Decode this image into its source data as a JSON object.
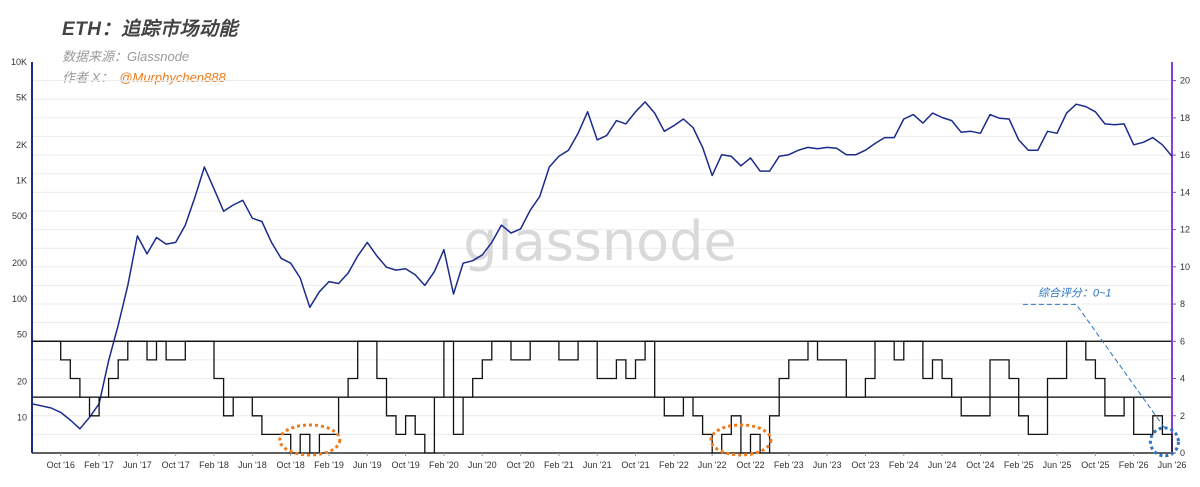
{
  "header": {
    "title": "ETH：追踪市场动能",
    "source": "数据来源：Glassnode",
    "author_prefix": "作者 X：",
    "author_handle": "@Murphychen888"
  },
  "watermark": "glassnode",
  "colors": {
    "price": "#1a2b8c",
    "score": "#111111",
    "left_axis": "#1a2b8c",
    "right_axis": "#8b3fd1",
    "highlight_orange": "#f07a1a",
    "highlight_blue": "#2a73c2",
    "grid": "#ececec"
  },
  "chart_data": {
    "type": "line",
    "title": "ETH：追踪市场动能",
    "xaxis": {
      "range": [
        "2016-07",
        "2026-06"
      ],
      "ticks": [
        "Oct '16",
        "Feb '17",
        "Jun '17",
        "Oct '17",
        "Feb '18",
        "Jun '18",
        "Oct '18",
        "Feb '19",
        "Jun '19",
        "Oct '19",
        "Feb '20",
        "Jun '20",
        "Oct '20",
        "Feb '21",
        "Jun '21",
        "Oct '21",
        "Feb '22",
        "Jun '22",
        "Oct '22",
        "Feb '23",
        "Jun '23",
        "Oct '23",
        "Feb '24",
        "Jun '24",
        "Oct '24",
        "Feb '25",
        "Jun '25",
        "Oct '25",
        "Feb '26",
        "Jun '26"
      ]
    },
    "yaxis_left": {
      "scale": "log",
      "range": [
        5,
        10000
      ],
      "ticks": [
        "10K",
        "5K",
        "2K",
        "1K",
        "500",
        "200",
        "100",
        "50",
        "20",
        "10"
      ]
    },
    "yaxis_right": {
      "scale": "linear",
      "range": [
        0,
        21
      ],
      "ticks": [
        "20",
        "18",
        "16",
        "14",
        "12",
        "10",
        "8",
        "6",
        "4",
        "2",
        "0"
      ]
    },
    "reference_lines_right": [
      6,
      3,
      0
    ],
    "series": [
      {
        "axis": "left",
        "points": [
          [
            "2016-07",
            13
          ],
          [
            "2016-09",
            12
          ],
          [
            "2016-10",
            11
          ],
          [
            "2016-11",
            9.5
          ],
          [
            "2016-12",
            8
          ],
          [
            "2017-01",
            10
          ],
          [
            "2017-02",
            13
          ],
          [
            "2017-03",
            30
          ],
          [
            "2017-04",
            60
          ],
          [
            "2017-05",
            130
          ],
          [
            "2017-06",
            340
          ],
          [
            "2017-07",
            240
          ],
          [
            "2017-08",
            330
          ],
          [
            "2017-09",
            290
          ],
          [
            "2017-10",
            300
          ],
          [
            "2017-11",
            420
          ],
          [
            "2017-12",
            720
          ],
          [
            "2018-01",
            1300
          ],
          [
            "2018-02",
            850
          ],
          [
            "2018-03",
            550
          ],
          [
            "2018-04",
            620
          ],
          [
            "2018-05",
            680
          ],
          [
            "2018-06",
            480
          ],
          [
            "2018-07",
            450
          ],
          [
            "2018-08",
            300
          ],
          [
            "2018-09",
            220
          ],
          [
            "2018-10",
            200
          ],
          [
            "2018-11",
            150
          ],
          [
            "2018-12",
            85
          ],
          [
            "2019-01",
            115
          ],
          [
            "2019-02",
            140
          ],
          [
            "2019-03",
            135
          ],
          [
            "2019-04",
            165
          ],
          [
            "2019-05",
            230
          ],
          [
            "2019-06",
            300
          ],
          [
            "2019-07",
            230
          ],
          [
            "2019-08",
            185
          ],
          [
            "2019-09",
            175
          ],
          [
            "2019-10",
            180
          ],
          [
            "2019-11",
            160
          ],
          [
            "2019-12",
            130
          ],
          [
            "2020-01",
            170
          ],
          [
            "2020-02",
            260
          ],
          [
            "2020-03",
            110
          ],
          [
            "2020-04",
            200
          ],
          [
            "2020-05",
            210
          ],
          [
            "2020-06",
            235
          ],
          [
            "2020-07",
            300
          ],
          [
            "2020-08",
            420
          ],
          [
            "2020-09",
            360
          ],
          [
            "2020-10",
            390
          ],
          [
            "2020-11",
            560
          ],
          [
            "2020-12",
            730
          ],
          [
            "2021-01",
            1300
          ],
          [
            "2021-02",
            1600
          ],
          [
            "2021-03",
            1800
          ],
          [
            "2021-04",
            2500
          ],
          [
            "2021-05",
            3800
          ],
          [
            "2021-06",
            2200
          ],
          [
            "2021-07",
            2400
          ],
          [
            "2021-08",
            3200
          ],
          [
            "2021-09",
            3000
          ],
          [
            "2021-10",
            3800
          ],
          [
            "2021-11",
            4600
          ],
          [
            "2021-12",
            3700
          ],
          [
            "2022-01",
            2600
          ],
          [
            "2022-02",
            2900
          ],
          [
            "2022-03",
            3300
          ],
          [
            "2022-04",
            2800
          ],
          [
            "2022-05",
            1900
          ],
          [
            "2022-06",
            1100
          ],
          [
            "2022-07",
            1650
          ],
          [
            "2022-08",
            1600
          ],
          [
            "2022-09",
            1330
          ],
          [
            "2022-10",
            1550
          ],
          [
            "2022-11",
            1200
          ],
          [
            "2022-12",
            1200
          ],
          [
            "2023-01",
            1600
          ],
          [
            "2023-02",
            1650
          ],
          [
            "2023-03",
            1800
          ],
          [
            "2023-04",
            1900
          ],
          [
            "2023-05",
            1850
          ],
          [
            "2023-06",
            1900
          ],
          [
            "2023-07",
            1870
          ],
          [
            "2023-08",
            1650
          ],
          [
            "2023-09",
            1650
          ],
          [
            "2023-10",
            1800
          ],
          [
            "2023-11",
            2050
          ],
          [
            "2023-12",
            2300
          ],
          [
            "2024-01",
            2300
          ],
          [
            "2024-02",
            3300
          ],
          [
            "2024-03",
            3600
          ],
          [
            "2024-04",
            3050
          ],
          [
            "2024-05",
            3700
          ],
          [
            "2024-06",
            3400
          ],
          [
            "2024-07",
            3200
          ],
          [
            "2024-08",
            2550
          ],
          [
            "2024-09",
            2600
          ],
          [
            "2024-10",
            2500
          ],
          [
            "2024-11",
            3600
          ],
          [
            "2024-12",
            3350
          ],
          [
            "2025-01",
            3300
          ],
          [
            "2025-02",
            2200
          ],
          [
            "2025-03",
            1800
          ],
          [
            "2025-04",
            1800
          ],
          [
            "2025-05",
            2600
          ],
          [
            "2025-06",
            2500
          ],
          [
            "2025-07",
            3700
          ],
          [
            "2025-08",
            4400
          ],
          [
            "2025-09",
            4200
          ],
          [
            "2025-10",
            3800
          ],
          [
            "2025-11",
            3000
          ],
          [
            "2025-12",
            2950
          ],
          [
            "2026-01",
            3000
          ],
          [
            "2026-02",
            2000
          ],
          [
            "2026-03",
            2100
          ],
          [
            "2026-04",
            2300
          ],
          [
            "2026-05",
            2000
          ],
          [
            "2026-06",
            1600
          ]
        ]
      },
      {
        "axis": "right",
        "points": [
          [
            "2016-07",
            6
          ],
          [
            "2016-09",
            6
          ],
          [
            "2016-10",
            5
          ],
          [
            "2016-11",
            4
          ],
          [
            "2016-12",
            3
          ],
          [
            "2017-01",
            2
          ],
          [
            "2017-02",
            3
          ],
          [
            "2017-03",
            4
          ],
          [
            "2017-04",
            5
          ],
          [
            "2017-05",
            6
          ],
          [
            "2017-06",
            6
          ],
          [
            "2017-07",
            5
          ],
          [
            "2017-08",
            6
          ],
          [
            "2017-09",
            5
          ],
          [
            "2017-10",
            5
          ],
          [
            "2017-11",
            6
          ],
          [
            "2017-12",
            6
          ],
          [
            "2018-01",
            6
          ],
          [
            "2018-02",
            4
          ],
          [
            "2018-03",
            2
          ],
          [
            "2018-04",
            3
          ],
          [
            "2018-05",
            3
          ],
          [
            "2018-06",
            2
          ],
          [
            "2018-07",
            1
          ],
          [
            "2018-08",
            1
          ],
          [
            "2018-09",
            1
          ],
          [
            "2018-10",
            0
          ],
          [
            "2018-11",
            1
          ],
          [
            "2018-12",
            0
          ],
          [
            "2019-01",
            1
          ],
          [
            "2019-02",
            1
          ],
          [
            "2019-03",
            3
          ],
          [
            "2019-04",
            4
          ],
          [
            "2019-05",
            6
          ],
          [
            "2019-06",
            6
          ],
          [
            "2019-07",
            4
          ],
          [
            "2019-08",
            2
          ],
          [
            "2019-09",
            1
          ],
          [
            "2019-10",
            2
          ],
          [
            "2019-11",
            1
          ],
          [
            "2019-12",
            0
          ],
          [
            "2020-01",
            3
          ],
          [
            "2020-02",
            6
          ],
          [
            "2020-03",
            1
          ],
          [
            "2020-04",
            3
          ],
          [
            "2020-05",
            4
          ],
          [
            "2020-06",
            5
          ],
          [
            "2020-07",
            6
          ],
          [
            "2020-08",
            6
          ],
          [
            "2020-09",
            5
          ],
          [
            "2020-10",
            5
          ],
          [
            "2020-11",
            6
          ],
          [
            "2020-12",
            6
          ],
          [
            "2021-01",
            6
          ],
          [
            "2021-02",
            5
          ],
          [
            "2021-03",
            5
          ],
          [
            "2021-04",
            6
          ],
          [
            "2021-05",
            6
          ],
          [
            "2021-06",
            4
          ],
          [
            "2021-07",
            4
          ],
          [
            "2021-08",
            5
          ],
          [
            "2021-09",
            4
          ],
          [
            "2021-10",
            5
          ],
          [
            "2021-11",
            6
          ],
          [
            "2021-12",
            3
          ],
          [
            "2022-01",
            2
          ],
          [
            "2022-02",
            2
          ],
          [
            "2022-03",
            3
          ],
          [
            "2022-04",
            2
          ],
          [
            "2022-05",
            1
          ],
          [
            "2022-06",
            0
          ],
          [
            "2022-07",
            1
          ],
          [
            "2022-08",
            2
          ],
          [
            "2022-09",
            0
          ],
          [
            "2022-10",
            1
          ],
          [
            "2022-11",
            0
          ],
          [
            "2022-12",
            2
          ],
          [
            "2023-01",
            4
          ],
          [
            "2023-02",
            5
          ],
          [
            "2023-03",
            5
          ],
          [
            "2023-04",
            6
          ],
          [
            "2023-05",
            5
          ],
          [
            "2023-06",
            5
          ],
          [
            "2023-07",
            5
          ],
          [
            "2023-08",
            3
          ],
          [
            "2023-09",
            3
          ],
          [
            "2023-10",
            4
          ],
          [
            "2023-11",
            6
          ],
          [
            "2023-12",
            6
          ],
          [
            "2024-01",
            5
          ],
          [
            "2024-02",
            6
          ],
          [
            "2024-03",
            6
          ],
          [
            "2024-04",
            4
          ],
          [
            "2024-05",
            5
          ],
          [
            "2024-06",
            4
          ],
          [
            "2024-07",
            3
          ],
          [
            "2024-08",
            2
          ],
          [
            "2024-09",
            2
          ],
          [
            "2024-10",
            2
          ],
          [
            "2024-11",
            5
          ],
          [
            "2024-12",
            5
          ],
          [
            "2025-01",
            4
          ],
          [
            "2025-02",
            2
          ],
          [
            "2025-03",
            1
          ],
          [
            "2025-04",
            1
          ],
          [
            "2025-05",
            4
          ],
          [
            "2025-06",
            4
          ],
          [
            "2025-07",
            6
          ],
          [
            "2025-08",
            6
          ],
          [
            "2025-09",
            5
          ],
          [
            "2025-10",
            4
          ],
          [
            "2025-11",
            2
          ],
          [
            "2025-12",
            2
          ],
          [
            "2026-01",
            3
          ],
          [
            "2026-02",
            1
          ],
          [
            "2026-03",
            1
          ],
          [
            "2026-04",
            2
          ],
          [
            "2026-05",
            1
          ],
          [
            "2026-06",
            0
          ]
        ]
      }
    ],
    "annotations": [
      {
        "text": "综合评分：0~1"
      }
    ]
  }
}
